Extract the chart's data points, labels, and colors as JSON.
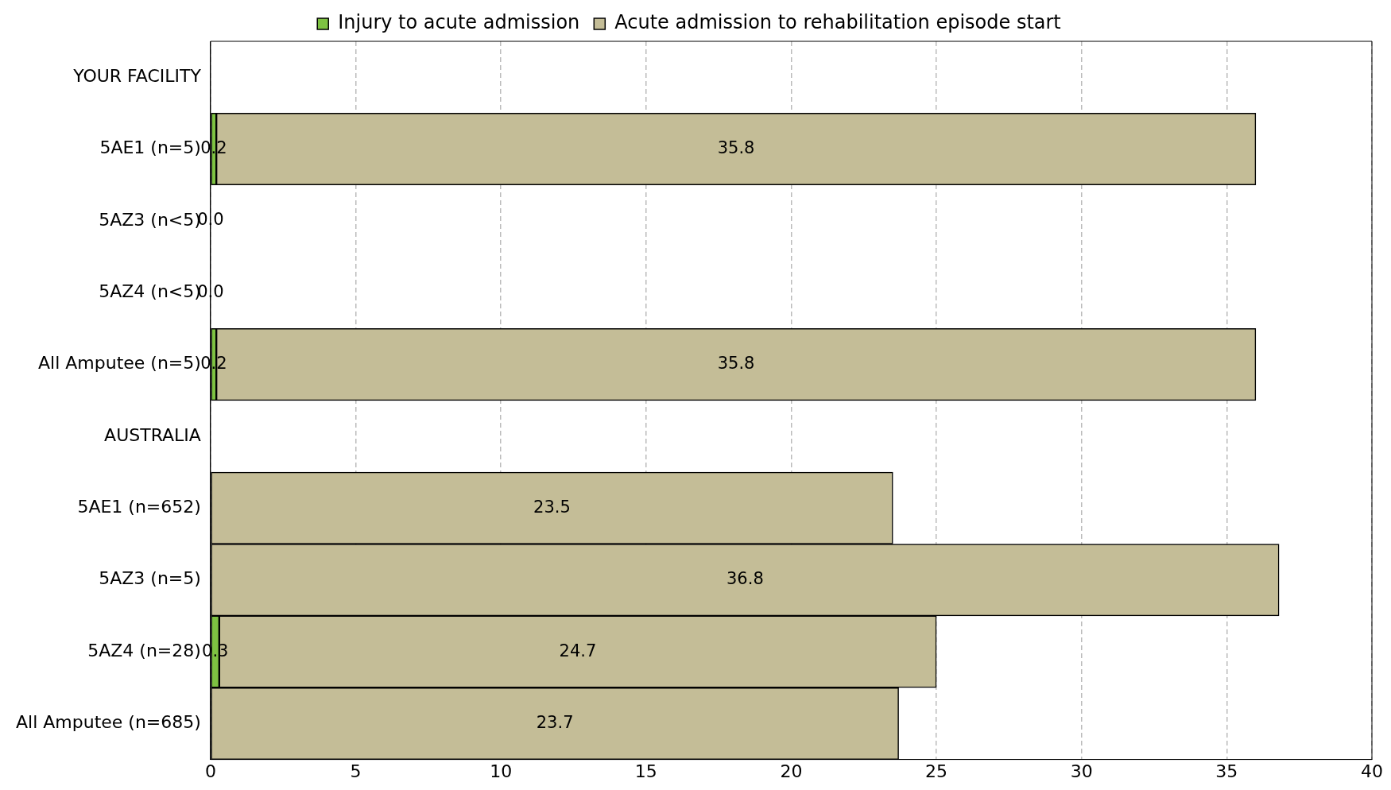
{
  "chart_data": {
    "type": "bar",
    "orientation": "horizontal",
    "stacked": true,
    "categories": [
      "YOUR FACILITY",
      "5AE1 (n=5)",
      "5AZ3 (n<5)",
      "5AZ4 (n<5)",
      "All Amputee (n=5)",
      "AUSTRALIA",
      "5AE1 (n=652)",
      "5AZ3 (n=5)",
      "5AZ4 (n=28)",
      "All Amputee (n=685)"
    ],
    "series": [
      {
        "name": "Injury to acute admission",
        "color": "#7ec242",
        "values": [
          null,
          0.2,
          0,
          0,
          0.2,
          null,
          null,
          null,
          0.3,
          null
        ],
        "value_labels": [
          null,
          "0.2",
          "0.0",
          "0.0",
          "0.2",
          null,
          null,
          null,
          "0.3",
          null
        ]
      },
      {
        "name": "Acute admission to rehabilitation episode start",
        "color": "#c4bd97",
        "values": [
          null,
          35.8,
          0,
          0,
          35.8,
          null,
          23.5,
          36.8,
          24.7,
          23.7
        ],
        "value_labels": [
          null,
          "35.8",
          null,
          null,
          "35.8",
          null,
          "23.5",
          "36.8",
          "24.7",
          "23.7"
        ]
      }
    ],
    "xlim": [
      0,
      40
    ],
    "xticks": [
      0,
      5,
      10,
      15,
      20,
      25,
      30,
      35,
      40
    ],
    "grid": "x",
    "legend": "top"
  }
}
